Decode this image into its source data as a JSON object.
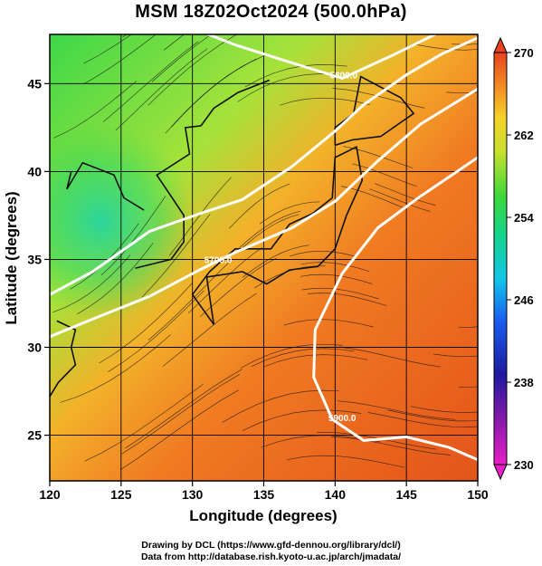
{
  "title": "MSM 18Z02Oct2024 (500.0hPa)",
  "chart_data": {
    "type": "map",
    "xlabel": "Longitude (degrees)",
    "ylabel": "Latitude  (degrees)",
    "xlim": [
      120,
      150
    ],
    "ylim": [
      22.4,
      47.8
    ],
    "x_ticks": [
      "120",
      "125",
      "130",
      "135",
      "140",
      "145",
      "150"
    ],
    "y_ticks": [
      "25",
      "30",
      "35",
      "40",
      "45"
    ],
    "x_tick_values": [
      120,
      125,
      130,
      135,
      140,
      145,
      150
    ],
    "y_tick_values": [
      25,
      30,
      35,
      40,
      45
    ],
    "grid": true,
    "colorbar": {
      "min": 230,
      "max": 270,
      "labels": [
        "270",
        "262",
        "254",
        "246",
        "238",
        "230"
      ],
      "label_values": [
        270,
        262,
        254,
        246,
        238,
        230
      ],
      "placement": "right"
    },
    "contour_labels": [
      {
        "text": "5800.0",
        "lon": 140.6,
        "lat": 45.3
      },
      {
        "text": "5700.0",
        "lon": 131.8,
        "lat": 34.8
      },
      {
        "text": "5900.0",
        "lon": 140.5,
        "lat": 25.8
      }
    ],
    "contours": [
      {
        "name": "5800.0",
        "points": [
          [
            130.5,
            48.0
          ],
          [
            133.0,
            47.2
          ],
          [
            136.5,
            46.3
          ],
          [
            140.5,
            45.3
          ],
          [
            144.0,
            46.6
          ],
          [
            147.5,
            48.0
          ]
        ]
      },
      {
        "name": "5700.0",
        "points": [
          [
            120.0,
            33.0
          ],
          [
            123.0,
            34.3
          ],
          [
            127.0,
            36.6
          ],
          [
            130.5,
            37.6
          ],
          [
            133.5,
            38.4
          ],
          [
            137.0,
            40.3
          ],
          [
            140.0,
            42.3
          ],
          [
            142.0,
            43.8
          ],
          [
            145.0,
            45.5
          ],
          [
            147.5,
            46.7
          ],
          [
            150.0,
            47.6
          ]
        ]
      },
      {
        "name": "5700.0b",
        "points": [
          [
            120.0,
            30.6
          ],
          [
            123.0,
            31.6
          ],
          [
            127.0,
            32.9
          ],
          [
            130.5,
            34.4
          ],
          [
            133.0,
            35.4
          ],
          [
            137.0,
            36.8
          ],
          [
            140.0,
            38.3
          ],
          [
            143.0,
            40.6
          ],
          [
            146.0,
            42.7
          ],
          [
            150.0,
            44.7
          ]
        ]
      },
      {
        "name": "5900.0",
        "points": [
          [
            150.0,
            40.8
          ],
          [
            146.0,
            38.6
          ],
          [
            143.0,
            36.8
          ],
          [
            140.5,
            34.2
          ],
          [
            138.6,
            31.0
          ],
          [
            138.5,
            28.3
          ],
          [
            139.8,
            25.9
          ],
          [
            142.0,
            24.7
          ],
          [
            145.0,
            24.9
          ],
          [
            148.0,
            24.3
          ],
          [
            150.0,
            23.6
          ]
        ]
      }
    ]
  },
  "credits": {
    "line1": "Drawing by DCL (https://www.gfd-dennou.org/library/dcl/)",
    "line2": "Data from http://database.rish.kyoto-u.ac.jp/arch/jmadata/"
  }
}
